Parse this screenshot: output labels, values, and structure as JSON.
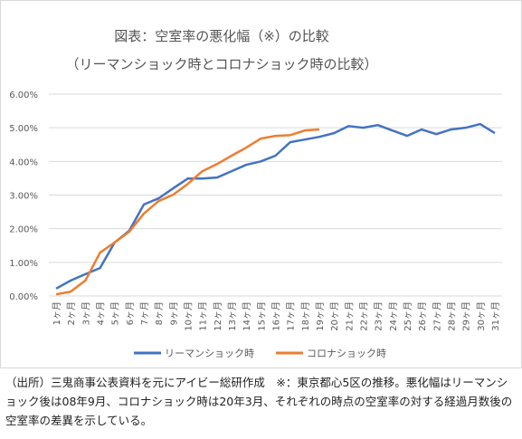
{
  "chart_data": {
    "type": "line",
    "title": "図表：空室率の悪化幅（※）の比較",
    "subtitle": "（リーマンショック時とコロナショック時の比較）",
    "categories": [
      "1ヶ月",
      "2ヶ月",
      "3ヶ月",
      "4ヶ月",
      "5ヶ月",
      "6ヶ月",
      "7ヶ月",
      "8ヶ月",
      "9ヶ月",
      "10ヶ月",
      "11ヶ月",
      "12ヶ月",
      "13ヶ月",
      "14ヶ月",
      "15ヶ月",
      "16ヶ月",
      "17ヶ月",
      "18ヶ月",
      "19ヶ月",
      "20ヶ月",
      "21ヶ月",
      "22ヶ月",
      "23ヶ月",
      "24ヶ月",
      "25ヶ月",
      "26ヶ月",
      "27ヶ月",
      "28ヶ月",
      "29ヶ月",
      "30ヶ月",
      "31ヶ月"
    ],
    "series": [
      {
        "name": "リーマンショック時",
        "color": "#4472c4",
        "values": [
          0.22,
          0.46,
          0.65,
          0.83,
          1.59,
          1.94,
          2.72,
          2.9,
          3.2,
          3.49,
          3.49,
          3.52,
          3.71,
          3.9,
          4.0,
          4.17,
          4.57,
          4.65,
          4.73,
          4.84,
          5.05,
          5.0,
          5.08,
          4.92,
          4.76,
          4.95,
          4.81,
          4.95,
          5.0,
          5.11,
          4.84
        ]
      },
      {
        "name": "コロナショック時",
        "color": "#ed7d31",
        "values": [
          0.05,
          0.13,
          0.46,
          1.29,
          1.59,
          1.91,
          2.45,
          2.82,
          3.01,
          3.33,
          3.71,
          3.92,
          4.17,
          4.41,
          4.68,
          4.76,
          4.78,
          4.92,
          4.95,
          null,
          null,
          null,
          null,
          null,
          null,
          null,
          null,
          null,
          null,
          null,
          null
        ]
      }
    ],
    "ylim": [
      0,
      6
    ],
    "yticks": [
      {
        "value": 0,
        "label": "0.00%"
      },
      {
        "value": 1,
        "label": "1.00%"
      },
      {
        "value": 2,
        "label": "2.00%"
      },
      {
        "value": 3,
        "label": "3.00%"
      },
      {
        "value": 4,
        "label": "4.00%"
      },
      {
        "value": 5,
        "label": "5.00%"
      },
      {
        "value": 6,
        "label": "6.00%"
      }
    ],
    "grid": true,
    "legend": "bottom",
    "note": "（出所）三鬼商事公表資料を元にアイビー総研作成　※：東京都心5区の推移。悪化幅はリーマンショック後は08年9月、コロナショック時は20年3月、それぞれの時点の空室率の対する経過月数後の空室率の差異を示している。"
  }
}
